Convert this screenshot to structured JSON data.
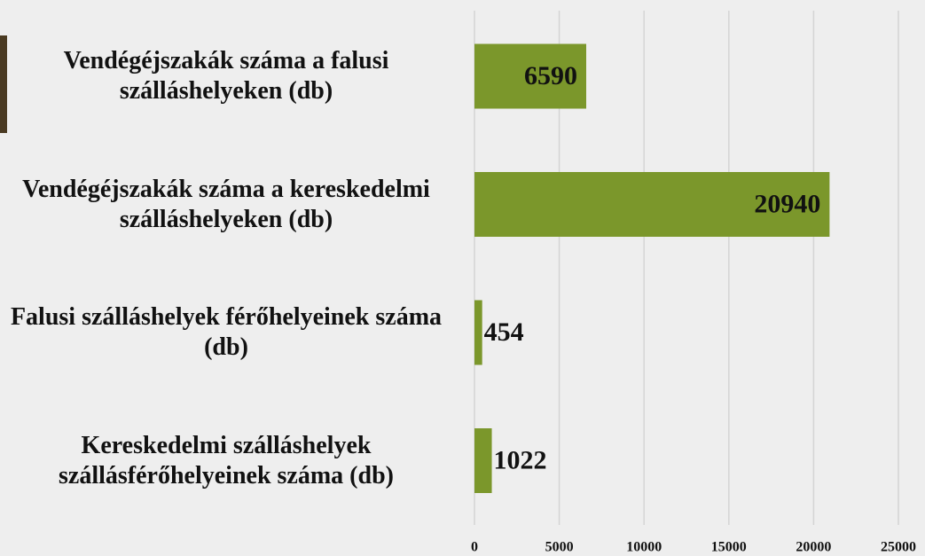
{
  "chart_data": {
    "type": "bar",
    "orientation": "horizontal",
    "categories": [
      "Vendégéjszakák száma a falusi szálláshelyeken (db)",
      "Vendégéjszakák száma a kereskedelmi szálláshelyeken (db)",
      "Falusi szálláshelyek férőhelyeinek száma (db)",
      "Kereskedelmi szálláshelyek szállásférőhelyeinek száma (db)"
    ],
    "values": [
      6590,
      20940,
      454,
      1022
    ],
    "color": "#7b972b",
    "xlim": [
      0,
      25000
    ],
    "xticks": [
      0,
      5000,
      10000,
      15000,
      20000,
      25000
    ],
    "grid": true
  }
}
